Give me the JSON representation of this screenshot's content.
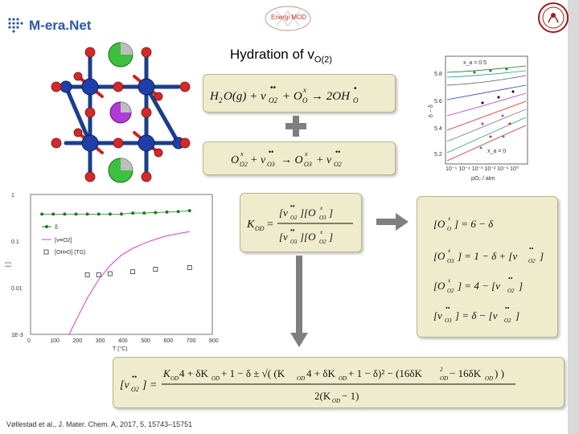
{
  "header": {
    "logo_left_text": "M-era.Net",
    "logo_center_text": "Energi MOD",
    "title_main": "Hydration of v",
    "title_sub": "O(2)"
  },
  "equations": {
    "hydration": "H₂O(g) + v••O2 + OxO → 2OH•O",
    "exchange": "OxO2 + v••O3 → OxO3 + v••O2",
    "kod": "K_OD = [v••O2][OxO3] / [v••O3][OxO2]",
    "site_balance": [
      "[OxO] = 6 − δ",
      "[OxO3] = 1 − δ + [v••O2]",
      "[OxO2] = 4 − [v••O2]",
      "[v••O3] = δ − [v••O2]"
    ],
    "solution": "[v••O2] = (K_OD·4 + δK_OD + 1 − δ ± √((K_OD·4 + δK_OD + 1 − δ)² − (16δK_OD² − 16δK_OD))) / 2(K_OD − 1)"
  },
  "chart_left": {
    "ylabel": "[ ]",
    "xlabel": "T (°C)",
    "y_ticks": [
      "1",
      "0.1",
      "0.01",
      "1E-3"
    ],
    "x_ticks": [
      "0",
      "100",
      "200",
      "300",
      "400",
      "500",
      "600",
      "700",
      "800"
    ],
    "legend": [
      "δ",
      "[v••O2]",
      "[OH•O] (TG)"
    ]
  },
  "chart_right": {
    "ylabel": "6 − δ",
    "xlabel": "pO₂ / atm",
    "y_ticks": [
      "5.8",
      "5.6",
      "5.4",
      "5.2"
    ],
    "annotations": [
      "x_a = 0.5",
      "x_a = 0"
    ]
  },
  "chart_data": [
    {
      "type": "scatter",
      "title": "",
      "xlabel": "T (°C)",
      "ylabel": "[ ]",
      "yscale": "log",
      "xlim": [
        0,
        800
      ],
      "ylim": [
        0.001,
        1
      ],
      "series": [
        {
          "name": "δ",
          "x": [
            50,
            100,
            150,
            200,
            250,
            300,
            350,
            400,
            450,
            500,
            550,
            600,
            650,
            700
          ],
          "values": [
            0.38,
            0.38,
            0.38,
            0.38,
            0.38,
            0.38,
            0.38,
            0.38,
            0.4,
            0.4,
            0.41,
            0.42,
            0.43,
            0.45
          ]
        },
        {
          "name": "[v••O2]",
          "x": [
            170,
            200,
            250,
            300,
            350,
            400,
            450,
            500,
            550,
            600,
            650,
            700
          ],
          "values": [
            0.001,
            0.002,
            0.006,
            0.015,
            0.03,
            0.05,
            0.07,
            0.09,
            0.11,
            0.13,
            0.145,
            0.16
          ]
        },
        {
          "name": "[OH•O] (TG)",
          "x": [
            250,
            300,
            350,
            450,
            550,
            700
          ],
          "values": [
            0.019,
            0.019,
            0.02,
            0.022,
            0.025,
            0.027
          ]
        }
      ]
    }
  ],
  "citation": "Vøllestad et al., J. Mater. Chem. A, 2017, 5, 15743–15751",
  "colors": {
    "box_fill": "#efeccd",
    "arrow": "#7f7f7f",
    "title": "#000000"
  }
}
